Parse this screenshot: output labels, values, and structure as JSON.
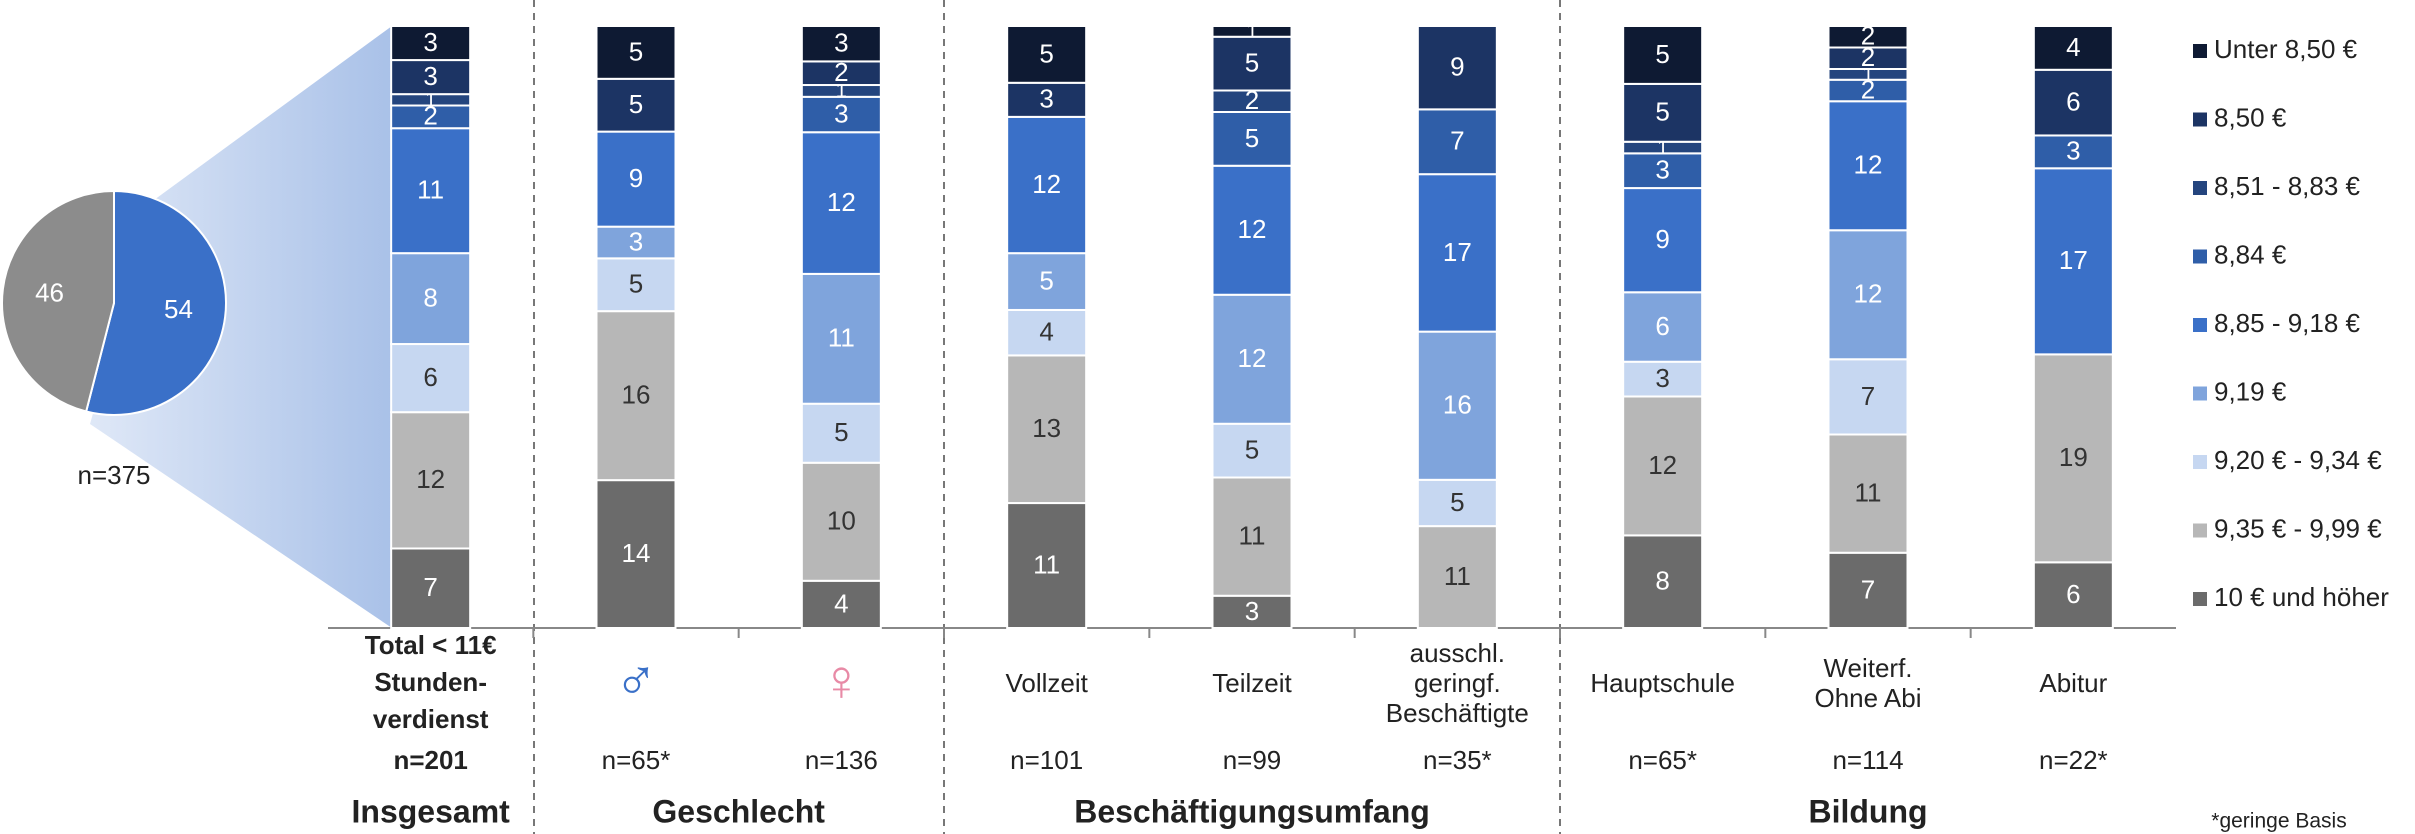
{
  "chart_data": [
    {
      "type": "pie",
      "values": [
        54,
        46
      ],
      "colors": [
        "#3a70c8",
        "#8c8c8c"
      ],
      "n_label": "n=375"
    },
    {
      "type": "stacked-bar",
      "categories": [
        "Total < 11€\nStunden-\nverdienst",
        "♂",
        "♀",
        "Vollzeit",
        "Teilzeit",
        "ausschl.\ngeringf.\nBeschäftigte",
        "Hauptschule",
        "Weiterf.\nOhne Abi",
        "Abitur"
      ],
      "n_labels": [
        "n=201",
        "n=65*",
        "n=136",
        "n=101",
        "n=99",
        "n=35*",
        "n=65*",
        "n=114",
        "n=22*"
      ],
      "groups": [
        {
          "label": "Insgesamt",
          "span": [
            0,
            0
          ]
        },
        {
          "label": "Geschlecht",
          "span": [
            1,
            2
          ]
        },
        {
          "label": "Beschäftigungsumfang",
          "span": [
            3,
            5
          ]
        },
        {
          "label": "Bildung",
          "span": [
            6,
            8
          ]
        }
      ],
      "series": [
        {
          "name": "10 € und höher",
          "color": "#6b6b6b",
          "values": [
            7,
            14,
            4,
            11,
            3,
            null,
            8,
            7,
            6
          ]
        },
        {
          "name": "9,35 € - 9,99 €",
          "color": "#b7b7b7",
          "values": [
            12,
            16,
            10,
            13,
            11,
            11,
            12,
            11,
            19
          ]
        },
        {
          "name": "9,20 €  - 9,34 €",
          "color": "#c6d7f1",
          "values": [
            6,
            5,
            5,
            4,
            5,
            5,
            3,
            7,
            null
          ]
        },
        {
          "name": "9,19 €",
          "color": "#7fa4dc",
          "values": [
            8,
            3,
            11,
            5,
            12,
            16,
            6,
            12,
            null
          ]
        },
        {
          "name": "8,85 - 9,18 €",
          "color": "#3a70c8",
          "values": [
            11,
            9,
            12,
            12,
            12,
            17,
            9,
            12,
            17
          ]
        },
        {
          "name": "8,84 €",
          "color": "#2f5ea8",
          "values": [
            2,
            null,
            3,
            null,
            5,
            7,
            3,
            2,
            3
          ]
        },
        {
          "name": "8,51 - 8,83 €",
          "color": "#24457e",
          "values": [
            1,
            null,
            1,
            null,
            2,
            null,
            1,
            1,
            null
          ]
        },
        {
          "name": "8,50 €",
          "color": "#1c3464",
          "values": [
            3,
            5,
            2,
            3,
            5,
            9,
            5,
            2,
            6
          ]
        },
        {
          "name": "Unter 8,50 €",
          "color": "#0e1a33",
          "values": [
            3,
            5,
            3,
            5,
            1,
            null,
            5,
            2,
            4
          ]
        }
      ],
      "footnote": "*geringe Basis"
    }
  ]
}
